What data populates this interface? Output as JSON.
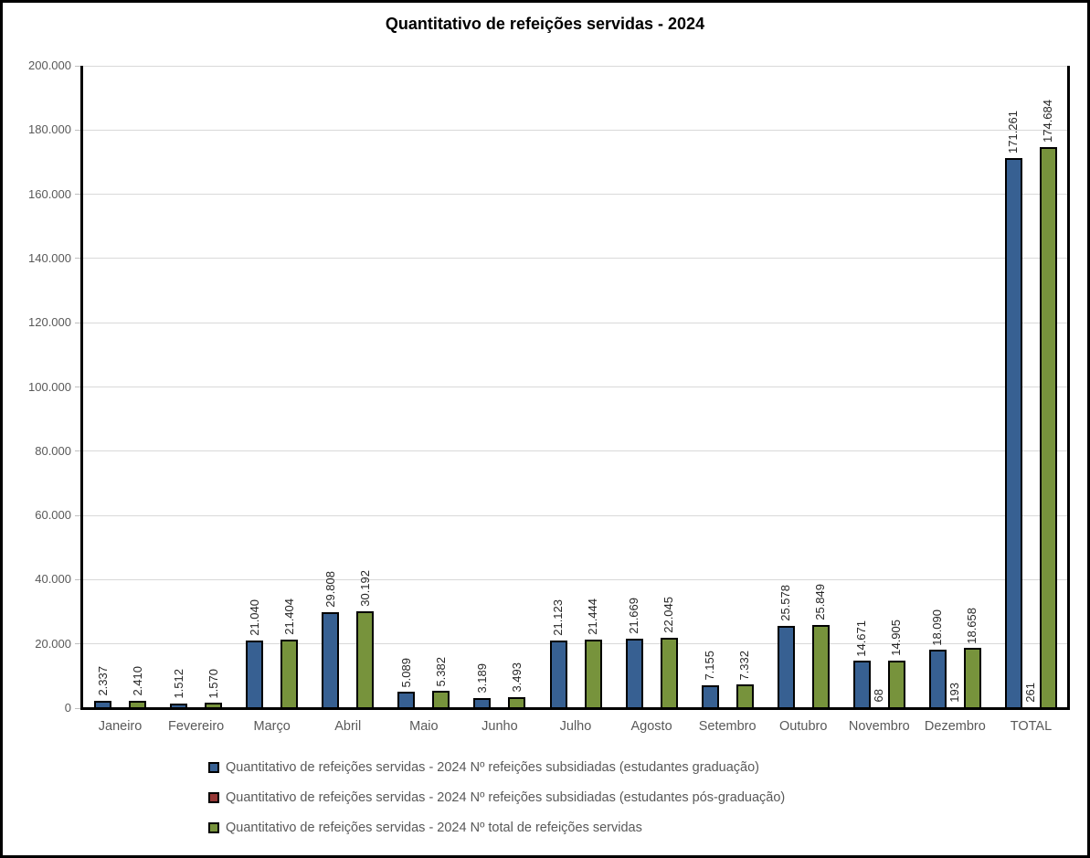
{
  "title": "Quantitativo de refeições servidas - 2024",
  "chart_data": {
    "type": "bar",
    "title": "Quantitativo de refeições servidas - 2024",
    "categories": [
      "Janeiro",
      "Fevereiro",
      "Março",
      "Abril",
      "Maio",
      "Junho",
      "Julho",
      "Agosto",
      "Setembro",
      "Outubro",
      "Novembro",
      "Dezembro",
      "TOTAL"
    ],
    "series": [
      {
        "name": "Quantitativo de refeições servidas - 2024 Nº refeições subsidiadas (estudantes graduação)",
        "color": "#376092",
        "values": [
          2337,
          1512,
          21040,
          29808,
          5089,
          3189,
          21123,
          21669,
          7155,
          25578,
          14671,
          18090,
          171261
        ]
      },
      {
        "name": "Quantitativo de refeições servidas - 2024 Nº refeições subsidiadas (estudantes pós-graduação)",
        "color": "#953735",
        "values": [
          0,
          0,
          0,
          0,
          0,
          0,
          0,
          0,
          0,
          0,
          68,
          193,
          261
        ]
      },
      {
        "name": "Quantitativo de refeições servidas - 2024 Nº total de refeições servidas",
        "color": "#77933C",
        "values": [
          2410,
          1570,
          21404,
          30192,
          5382,
          3493,
          21444,
          22045,
          7332,
          25849,
          14905,
          18658,
          174684
        ]
      }
    ],
    "ylim": [
      0,
      200000
    ],
    "ytick_step": 20000,
    "ytick_labels": [
      "0",
      "20.000",
      "40.000",
      "60.000",
      "80.000",
      "100.000",
      "120.000",
      "140.000",
      "160.000",
      "180.000",
      "200.000"
    ],
    "grid": true,
    "legend_position": "bottom-left",
    "data_labels_orientation": "vertical",
    "data_labels_note": "zero values have no bar and no label; thousands separated with dots"
  },
  "colors": {
    "background": "#ffffff",
    "outer_border": "#000000",
    "gridline": "#d9d9d9",
    "axis_text": "#595959",
    "data_label_text": "#262626",
    "bar_outline": "#000000"
  }
}
